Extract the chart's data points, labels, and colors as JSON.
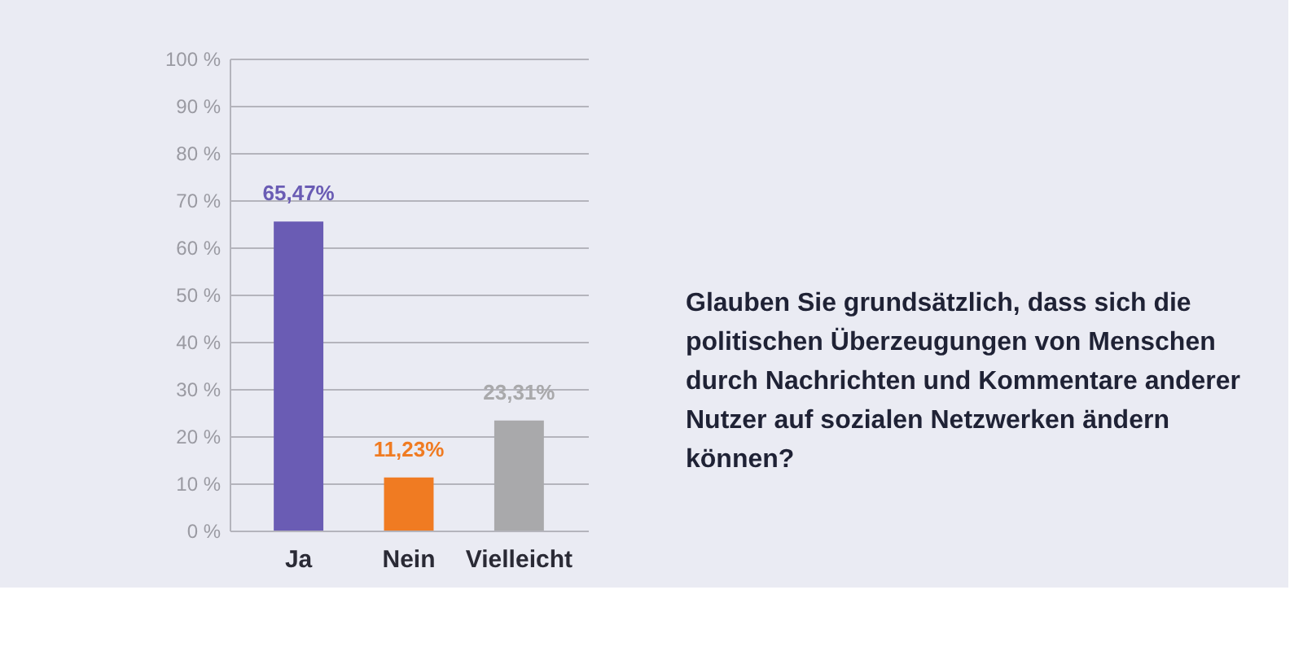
{
  "chart_data": {
    "type": "bar",
    "title": "Glauben Sie grundsätzlich, dass sich die politischen Überzeugungen von Menschen durch Nachrichten und Kommentare anderer Nutzer auf sozialen Netzwerken ändern können?",
    "categories": [
      "Ja",
      "Nein",
      "Vielleicht"
    ],
    "values": [
      65.47,
      11.23,
      23.31
    ],
    "colors": [
      "#6a5cb4",
      "#f07b22",
      "#a9a9ab"
    ],
    "value_labels": [
      "65,47%",
      "11,23%",
      "23,31%"
    ],
    "ylim": [
      0,
      100
    ],
    "yticks": [
      {
        "value": 0,
        "label": "0 %"
      },
      {
        "value": 10,
        "label": "10 %"
      },
      {
        "value": 20,
        "label": "20 %"
      },
      {
        "value": 30,
        "label": "30 %"
      },
      {
        "value": 40,
        "label": "40 %"
      },
      {
        "value": 50,
        "label": "50 %"
      },
      {
        "value": 60,
        "label": "60 %"
      },
      {
        "value": 70,
        "label": "70 %"
      },
      {
        "value": 80,
        "label": "80 %"
      },
      {
        "value": 90,
        "label": "90 %"
      },
      {
        "value": 100,
        "label": "100 %"
      }
    ],
    "grid": "y",
    "legend": false
  }
}
